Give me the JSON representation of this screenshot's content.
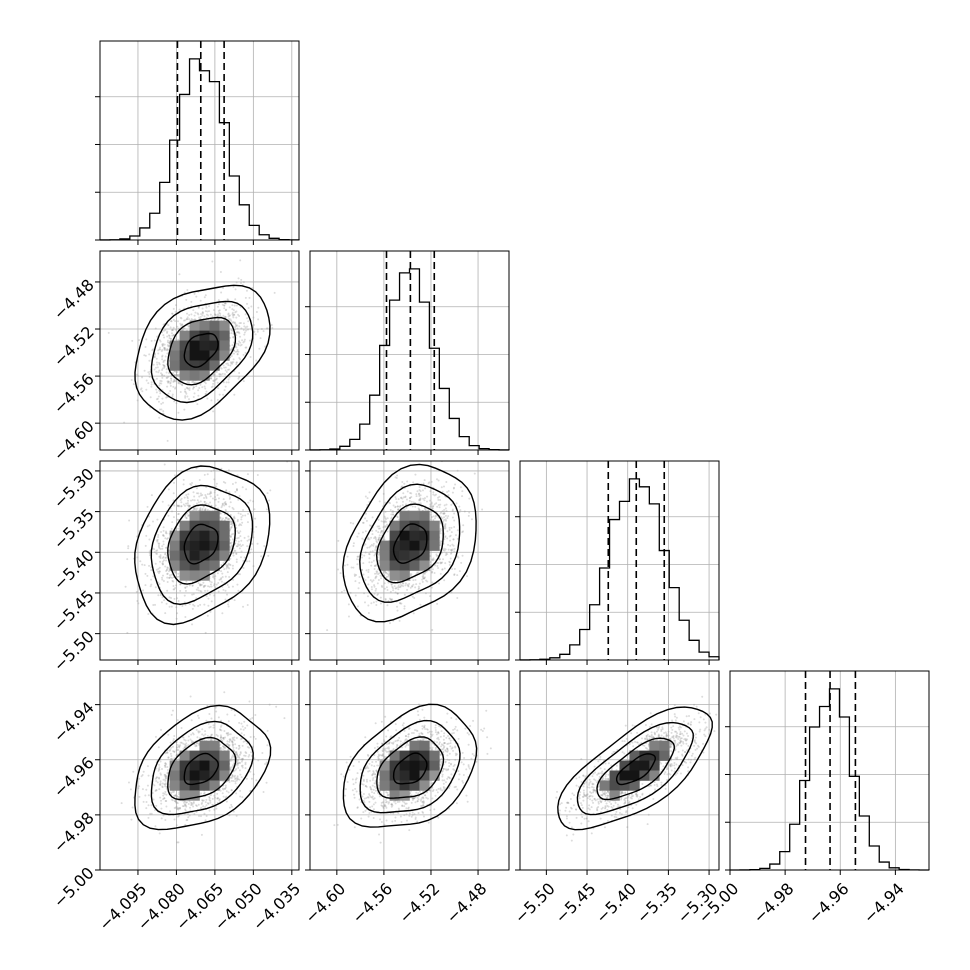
{
  "chart_data": {
    "type": "corner",
    "parameters": [
      {
        "index": 0,
        "mean": -4.0705,
        "sigma": 0.0093,
        "quantiles": [
          -4.0796,
          -4.0705,
          -4.0614
        ],
        "range": [
          -4.1098,
          -4.0322
        ],
        "ticks": [
          -4.095,
          -4.08,
          -4.065,
          -4.05,
          -4.035
        ],
        "tick_labels": [
          "−4.095",
          "−4.080",
          "−4.065",
          "−4.050",
          "−4.035"
        ]
      },
      {
        "index": 1,
        "mean": -4.5375,
        "sigma": 0.02,
        "quantiles": [
          -4.5578,
          -4.5375,
          -4.5172
        ],
        "range": [
          -4.6228,
          -4.4537
        ],
        "ticks": [
          -4.6,
          -4.56,
          -4.52,
          -4.48
        ],
        "tick_labels": [
          "−4.60",
          "−4.56",
          "−4.52",
          "−4.48"
        ]
      },
      {
        "index": 2,
        "mean": -5.3895,
        "sigma": 0.0335,
        "quantiles": [
          -5.4239,
          -5.3895,
          -5.3551
        ],
        "range": [
          -5.5324,
          -5.2878
        ],
        "ticks": [
          -5.5,
          -5.45,
          -5.4,
          -5.35,
          -5.3
        ],
        "tick_labels": [
          "−5.50",
          "−5.45",
          "−5.40",
          "−5.35",
          "−5.30"
        ]
      },
      {
        "index": 3,
        "mean": -4.9635,
        "sigma": 0.0078,
        "quantiles": [
          -4.9726,
          -4.9637,
          -4.9545
        ],
        "range": [
          -5.0,
          -4.9278
        ],
        "ticks": [
          -5.0,
          -4.98,
          -4.96,
          -4.94
        ],
        "tick_labels": [
          "−5.00",
          "−4.98",
          "−4.96",
          "−4.94"
        ]
      }
    ],
    "correlations": [
      {
        "pair": [
          1,
          0
        ],
        "rho": 0.35
      },
      {
        "pair": [
          2,
          0
        ],
        "rho": 0.25
      },
      {
        "pair": [
          2,
          1
        ],
        "rho": 0.3
      },
      {
        "pair": [
          3,
          0
        ],
        "rho": 0.35
      },
      {
        "pair": [
          3,
          1
        ],
        "rho": 0.35
      },
      {
        "pair": [
          3,
          2
        ],
        "rho": 0.7
      }
    ],
    "histogram_bins": 20,
    "contour_levels_sigma": [
      0.5,
      1.0,
      1.5,
      2.0
    ],
    "quantile_levels": [
      0.16,
      0.5,
      0.84
    ],
    "grid": true,
    "title": "",
    "colors": {
      "line": "#000000",
      "scatter": "#9a9a9a",
      "grid": "#b0b0b0",
      "density_max": "#000000"
    }
  }
}
